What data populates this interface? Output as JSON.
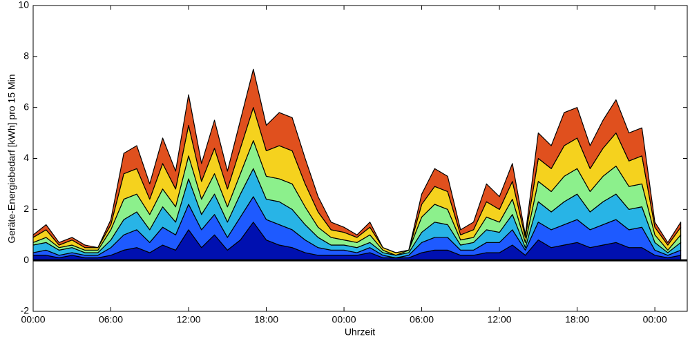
{
  "chart_data": {
    "type": "stacked_area",
    "x_label": "Uhrzeit",
    "y_label": "Geräte-Energiebedarf [kWh] pro 15 Min",
    "x": [
      0,
      1,
      2,
      3,
      4,
      5,
      6,
      7,
      8,
      9,
      10,
      11,
      12,
      13,
      14,
      15,
      16,
      17,
      18,
      19,
      20,
      21,
      22,
      23,
      24,
      25,
      26,
      27,
      28,
      29,
      30,
      31,
      32,
      33,
      34,
      35,
      36,
      37,
      38,
      39,
      40,
      41,
      42,
      43,
      44,
      45,
      46,
      47,
      48,
      49,
      50
    ],
    "xlim": [
      0,
      50.5
    ],
    "xticks": [
      {
        "value": 0,
        "label": "00:00"
      },
      {
        "value": 6,
        "label": "06:00"
      },
      {
        "value": 12,
        "label": "12:00"
      },
      {
        "value": 18,
        "label": "18:00"
      },
      {
        "value": 24,
        "label": "00:00"
      },
      {
        "value": 30,
        "label": "06:00"
      },
      {
        "value": 36,
        "label": "12:00"
      },
      {
        "value": 42,
        "label": "18:00"
      },
      {
        "value": 48,
        "label": "00:00"
      }
    ],
    "ylim": [
      -2,
      10
    ],
    "yticks": [
      -2,
      0,
      2,
      4,
      6,
      8,
      10
    ],
    "series": [
      {
        "color": "#0010b0",
        "values": [
          0.2,
          0.2,
          0.1,
          0.2,
          0.1,
          0.1,
          0.2,
          0.4,
          0.5,
          0.3,
          0.6,
          0.4,
          1.2,
          0.5,
          1.0,
          0.4,
          0.8,
          1.5,
          0.8,
          0.6,
          0.5,
          0.3,
          0.2,
          0.2,
          0.2,
          0.2,
          0.3,
          0.1,
          0.1,
          0.1,
          0.3,
          0.4,
          0.4,
          0.2,
          0.2,
          0.3,
          0.3,
          0.6,
          0.2,
          0.8,
          0.5,
          0.6,
          0.7,
          0.5,
          0.6,
          0.7,
          0.5,
          0.5,
          0.2,
          0.1,
          0.2
        ]
      },
      {
        "color": "#1e5aff",
        "values": [
          0.1,
          0.2,
          0.1,
          0.1,
          0.1,
          0.1,
          0.3,
          0.6,
          0.7,
          0.4,
          0.7,
          0.6,
          1.0,
          0.7,
          0.8,
          0.5,
          0.9,
          1.0,
          0.8,
          0.8,
          0.7,
          0.5,
          0.3,
          0.2,
          0.2,
          0.1,
          0.2,
          0.1,
          0,
          0.1,
          0.4,
          0.5,
          0.5,
          0.2,
          0.2,
          0.4,
          0.4,
          0.6,
          0.2,
          0.7,
          0.7,
          0.8,
          0.9,
          0.7,
          0.8,
          0.9,
          0.7,
          0.8,
          0.2,
          0.1,
          0.2
        ]
      },
      {
        "color": "#28b4e6",
        "values": [
          0.3,
          0.3,
          0.2,
          0.2,
          0.1,
          0.1,
          0.3,
          0.6,
          0.7,
          0.5,
          0.8,
          0.5,
          1.0,
          0.6,
          0.8,
          0.6,
          0.9,
          1.1,
          0.8,
          0.9,
          0.8,
          0.6,
          0.4,
          0.2,
          0.2,
          0.2,
          0.2,
          0.1,
          0.1,
          0.1,
          0.4,
          0.6,
          0.5,
          0.2,
          0.3,
          0.5,
          0.4,
          0.6,
          0.1,
          0.8,
          0.7,
          0.9,
          1.0,
          0.7,
          0.9,
          1.0,
          0.8,
          0.8,
          0.3,
          0.1,
          0.3
        ]
      },
      {
        "color": "#8cf08c",
        "values": [
          0.1,
          0.2,
          0.1,
          0.1,
          0.1,
          0.1,
          0.4,
          0.8,
          0.7,
          0.6,
          0.7,
          0.6,
          0.9,
          0.6,
          0.8,
          0.6,
          0.8,
          1.1,
          0.9,
          0.9,
          1.0,
          0.7,
          0.4,
          0.3,
          0.2,
          0.2,
          0.3,
          0.1,
          0,
          0.1,
          0.6,
          0.7,
          0.6,
          0.2,
          0.2,
          0.5,
          0.4,
          0.6,
          0.2,
          0.8,
          0.8,
          1.0,
          1.0,
          0.8,
          1.0,
          1.1,
          0.9,
          0.9,
          0.3,
          0.1,
          0.3
        ]
      },
      {
        "color": "#f5d21e",
        "values": [
          0.2,
          0.3,
          0.1,
          0.2,
          0.1,
          0.1,
          0.2,
          1.0,
          1.0,
          0.6,
          1.0,
          0.7,
          1.2,
          0.7,
          1.0,
          0.7,
          1.0,
          1.3,
          1.0,
          1.3,
          1.3,
          0.9,
          0.6,
          0.3,
          0.3,
          0.2,
          0.3,
          0.1,
          0.1,
          0,
          0.5,
          0.7,
          0.7,
          0.2,
          0.3,
          0.6,
          0.5,
          0.7,
          0.2,
          0.9,
          0.9,
          1.2,
          1.2,
          0.9,
          1.1,
          1.3,
          1.0,
          1.1,
          0.3,
          0.2,
          0.3
        ]
      },
      {
        "color": "#e0501e",
        "values": [
          0.1,
          0.2,
          0.1,
          0.1,
          0.1,
          0,
          0.2,
          0.8,
          0.9,
          0.6,
          1.0,
          0.7,
          1.2,
          0.7,
          1.1,
          0.7,
          1.1,
          1.5,
          1.0,
          1.3,
          1.3,
          1.0,
          0.6,
          0.3,
          0.2,
          0.1,
          0.2,
          0,
          0,
          0,
          0.4,
          0.7,
          0.6,
          0.2,
          0.3,
          0.7,
          0.5,
          0.7,
          0.1,
          1.0,
          0.9,
          1.3,
          1.2,
          0.9,
          1.1,
          1.3,
          1.1,
          1.1,
          0.2,
          0.1,
          0.2
        ]
      }
    ]
  }
}
